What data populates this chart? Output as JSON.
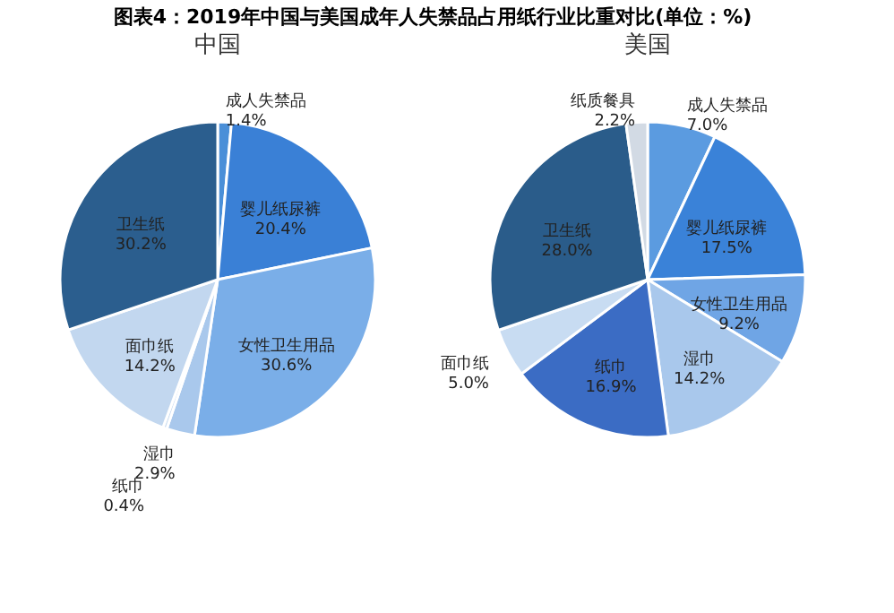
{
  "chart_data": [
    {
      "type": "pie",
      "title": "图表4：2019年中国与美国成年人失禁品占用纸行业比重对比(单位：%)",
      "subtitle": "中国",
      "data_labels": true,
      "categories": [
        "成人失禁品",
        "婴儿纸尿裤",
        "女性卫生用品",
        "湿巾",
        "纸巾",
        "面巾纸",
        "卫生纸"
      ],
      "values": [
        1.4,
        20.4,
        30.6,
        2.9,
        0.4,
        14.2,
        30.2
      ],
      "value_labels": [
        "1.4%",
        "20.4%",
        "30.6%",
        "2.9%",
        "0.4%",
        "14.2%",
        "30.2%"
      ],
      "colors": [
        "#4a8fd8",
        "#3a80d6",
        "#7aaee8",
        "#a9c8ec",
        "#c9dbf0",
        "#c2d7ef",
        "#2b5e8e"
      ]
    },
    {
      "type": "pie",
      "subtitle": "美国",
      "data_labels": true,
      "categories": [
        "成人失禁品",
        "婴儿纸尿裤",
        "女性卫生用品",
        "湿巾",
        "纸巾",
        "面巾纸",
        "卫生纸",
        "纸质餐具"
      ],
      "values": [
        7.0,
        17.5,
        9.2,
        14.2,
        16.9,
        5.0,
        28.0,
        2.2
      ],
      "value_labels": [
        "7.0%",
        "17.5%",
        "9.2%",
        "14.2%",
        "16.9%",
        "5.0%",
        "28.0%",
        "2.2%"
      ],
      "colors": [
        "#5b9be0",
        "#3a82d8",
        "#6fa5e5",
        "#a9c8ec",
        "#3b6cc4",
        "#c8dcf2",
        "#2a5c8a",
        "#d2dae4"
      ]
    }
  ]
}
